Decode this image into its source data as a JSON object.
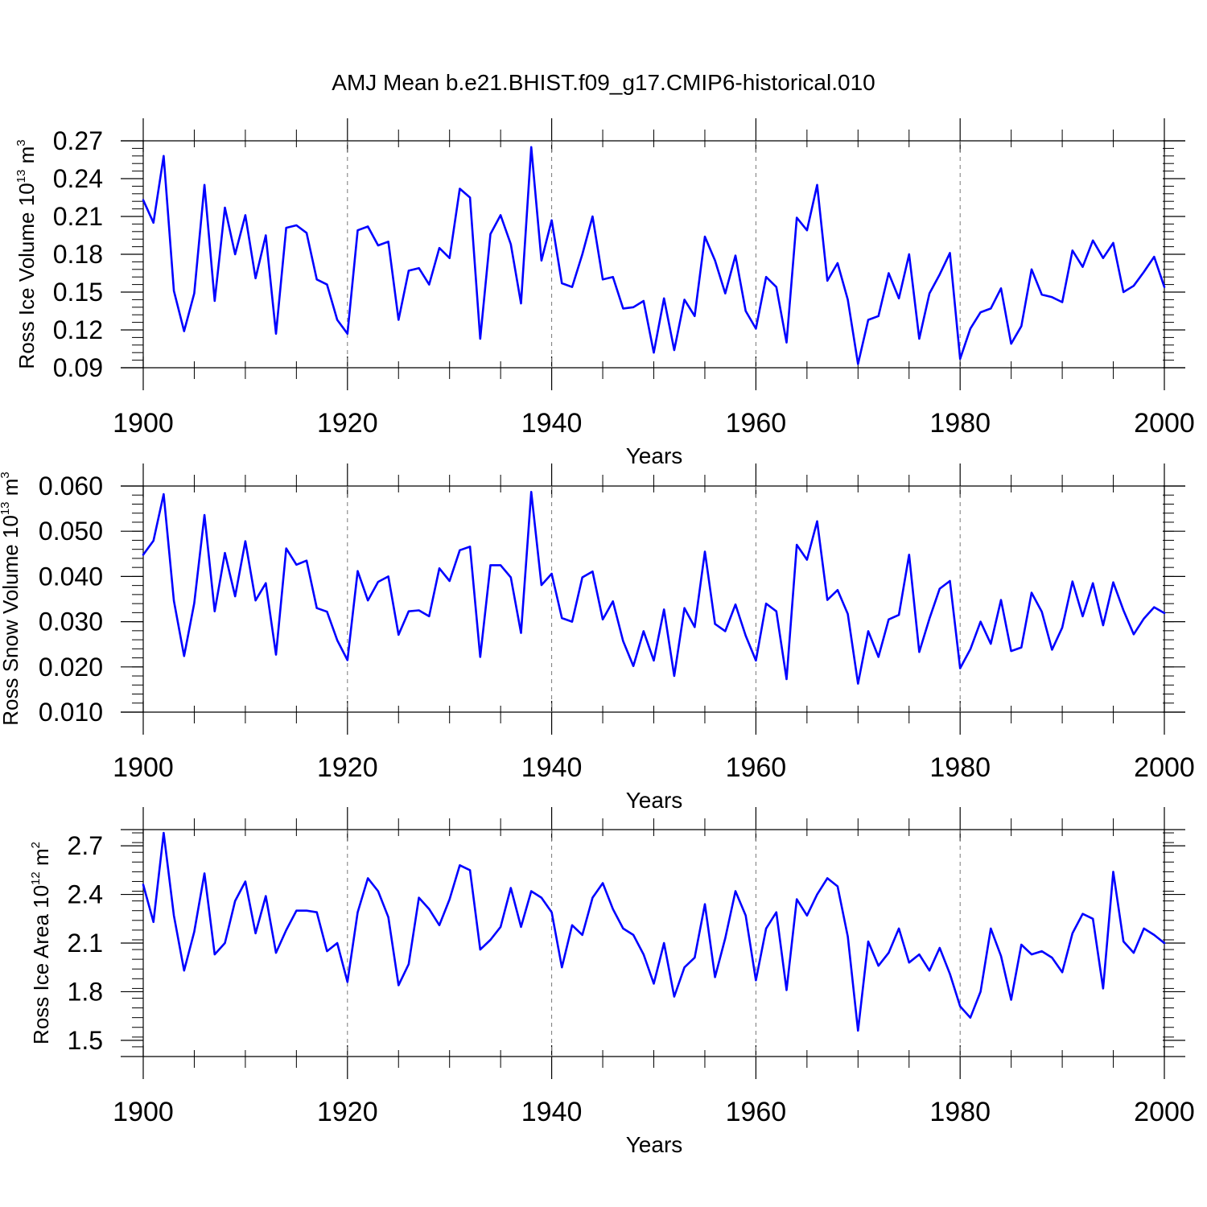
{
  "chart_data": [
    {
      "type": "line",
      "title": "AMJ Mean b.e21.BHIST.f09_g17.CMIP6-historical.010",
      "xlabel": "Years",
      "ylabel": {
        "prefix": "Ross Ice Volume 10",
        "exp": "13",
        "unit": " m",
        "unit_exp": "3"
      },
      "xlim": [
        1900,
        2000
      ],
      "ylim": [
        0.09,
        0.27
      ],
      "yticks": [
        "0.09",
        "0.12",
        "0.15",
        "0.18",
        "0.21",
        "0.24",
        "0.27"
      ],
      "xticks": [
        "1900",
        "1920",
        "1940",
        "1960",
        "1980",
        "2000"
      ],
      "line_color": "#0000ff",
      "x_start": 1900,
      "values": [
        0.223,
        0.205,
        0.258,
        0.151,
        0.119,
        0.149,
        0.235,
        0.143,
        0.217,
        0.18,
        0.211,
        0.161,
        0.195,
        0.117,
        0.201,
        0.203,
        0.197,
        0.16,
        0.156,
        0.128,
        0.117,
        0.199,
        0.202,
        0.187,
        0.19,
        0.128,
        0.167,
        0.169,
        0.156,
        0.185,
        0.177,
        0.232,
        0.225,
        0.113,
        0.196,
        0.211,
        0.188,
        0.141,
        0.265,
        0.175,
        0.207,
        0.157,
        0.154,
        0.18,
        0.21,
        0.16,
        0.162,
        0.137,
        0.138,
        0.143,
        0.102,
        0.145,
        0.104,
        0.144,
        0.131,
        0.194,
        0.175,
        0.149,
        0.179,
        0.135,
        0.121,
        0.162,
        0.154,
        0.11,
        0.209,
        0.199,
        0.235,
        0.159,
        0.173,
        0.144,
        0.093,
        0.128,
        0.131,
        0.165,
        0.145,
        0.18,
        0.113,
        0.149,
        0.164,
        0.181,
        0.097,
        0.121,
        0.134,
        0.137,
        0.153,
        0.109,
        0.123,
        0.168,
        0.148,
        0.146,
        0.142,
        0.183,
        0.17,
        0.191,
        0.177,
        0.189,
        0.15,
        0.155,
        0.166,
        0.178,
        0.154
      ]
    },
    {
      "type": "line",
      "xlabel": "Years",
      "ylabel": {
        "prefix": "Ross Snow Volume 10",
        "exp": "13",
        "unit": " m",
        "unit_exp": "3"
      },
      "xlim": [
        1900,
        2000
      ],
      "ylim": [
        0.01,
        0.06
      ],
      "yticks": [
        "0.010",
        "0.020",
        "0.030",
        "0.040",
        "0.050",
        "0.060"
      ],
      "xticks": [
        "1900",
        "1920",
        "1940",
        "1960",
        "1980",
        "2000"
      ],
      "line_color": "#0000ff",
      "x_start": 1900,
      "values": [
        0.0448,
        0.0479,
        0.0582,
        0.0346,
        0.0224,
        0.0341,
        0.0536,
        0.0323,
        0.0452,
        0.0356,
        0.0478,
        0.0347,
        0.0385,
        0.0227,
        0.0462,
        0.0426,
        0.0435,
        0.033,
        0.0322,
        0.0259,
        0.0215,
        0.0412,
        0.0347,
        0.0388,
        0.04,
        0.0271,
        0.0323,
        0.0325,
        0.0312,
        0.0418,
        0.039,
        0.0458,
        0.0466,
        0.0222,
        0.0425,
        0.0425,
        0.0398,
        0.0275,
        0.0587,
        0.0381,
        0.0406,
        0.0308,
        0.03,
        0.0398,
        0.0411,
        0.0305,
        0.0345,
        0.0257,
        0.0202,
        0.0279,
        0.0214,
        0.0327,
        0.018,
        0.033,
        0.0288,
        0.0455,
        0.0295,
        0.0279,
        0.0338,
        0.0269,
        0.0214,
        0.034,
        0.0323,
        0.0173,
        0.047,
        0.0437,
        0.0522,
        0.0348,
        0.037,
        0.0317,
        0.0163,
        0.0279,
        0.0222,
        0.0305,
        0.0315,
        0.0448,
        0.0233,
        0.0307,
        0.0373,
        0.039,
        0.0197,
        0.0239,
        0.03,
        0.0251,
        0.0348,
        0.0235,
        0.0243,
        0.0364,
        0.0322,
        0.0238,
        0.0287,
        0.0389,
        0.0312,
        0.0385,
        0.0292,
        0.0387,
        0.0325,
        0.0272,
        0.0307,
        0.0332,
        0.0319
      ]
    },
    {
      "type": "line",
      "xlabel": "Years",
      "ylabel": {
        "prefix": "Ross Ice Area 10",
        "exp": "12",
        "unit": " m",
        "unit_exp": "2"
      },
      "xlim": [
        1900,
        2000
      ],
      "ylim": [
        1.4,
        2.8
      ],
      "yticks": [
        "1.5",
        "1.8",
        "2.1",
        "2.4",
        "2.7"
      ],
      "xticks": [
        "1900",
        "1920",
        "1940",
        "1960",
        "1980",
        "2000"
      ],
      "line_color": "#0000ff",
      "x_start": 1900,
      "values": [
        2.46,
        2.23,
        2.78,
        2.27,
        1.93,
        2.17,
        2.53,
        2.03,
        2.1,
        2.36,
        2.48,
        2.16,
        2.39,
        2.04,
        2.18,
        2.3,
        2.3,
        2.29,
        2.05,
        2.1,
        1.86,
        2.29,
        2.5,
        2.42,
        2.26,
        1.84,
        1.97,
        2.38,
        2.31,
        2.21,
        2.37,
        2.58,
        2.55,
        2.06,
        2.12,
        2.2,
        2.44,
        2.2,
        2.42,
        2.38,
        2.29,
        1.95,
        2.21,
        2.15,
        2.38,
        2.47,
        2.31,
        2.19,
        2.15,
        2.03,
        1.85,
        2.1,
        1.77,
        1.95,
        2.01,
        2.34,
        1.89,
        2.13,
        2.42,
        2.27,
        1.87,
        2.19,
        2.29,
        1.81,
        2.37,
        2.27,
        2.4,
        2.5,
        2.45,
        2.14,
        1.56,
        2.11,
        1.96,
        2.04,
        2.19,
        1.98,
        2.03,
        1.93,
        2.07,
        1.91,
        1.71,
        1.64,
        1.8,
        2.19,
        2.02,
        1.75,
        2.09,
        2.03,
        2.05,
        2.01,
        1.92,
        2.16,
        2.28,
        2.25,
        1.82,
        2.54,
        2.11,
        2.04,
        2.19,
        2.15,
        2.1
      ]
    }
  ]
}
